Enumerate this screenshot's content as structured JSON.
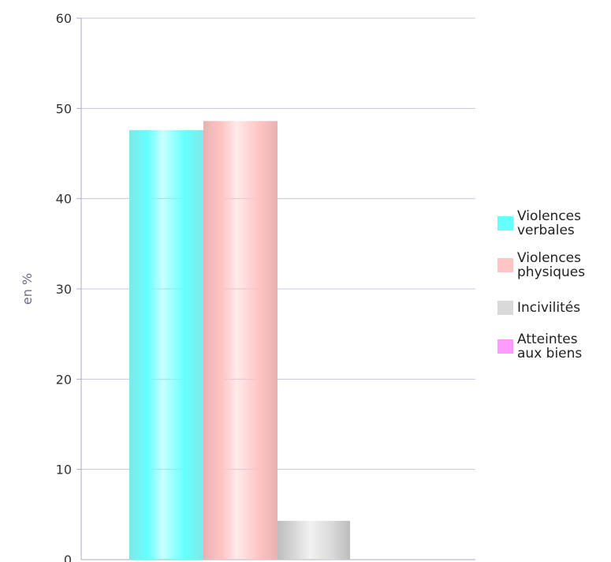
{
  "chart_data": {
    "type": "bar",
    "title": "",
    "xlabel": "",
    "ylabel": "en %",
    "ylim": [
      0,
      60
    ],
    "yticks": [
      0,
      10,
      20,
      30,
      40,
      50,
      60
    ],
    "grid": true,
    "legend_position": "right",
    "series": [
      {
        "name": "Violences verbales",
        "legend_lines": [
          "Violences",
          "verbales"
        ],
        "value": 47.6,
        "color": "#66ffff",
        "color_dark": "#7fe8e8"
      },
      {
        "name": "Violences physiques",
        "legend_lines": [
          "Violences",
          "physiques"
        ],
        "value": 48.6,
        "color": "#ffc4c4",
        "color_dark": "#e8b2b2"
      },
      {
        "name": "Incivilités",
        "legend_lines": [
          "Incivilités"
        ],
        "value": 4.3,
        "color": "#d9d9d9",
        "color_dark": "#bdbdbd"
      },
      {
        "name": "Atteintes aux biens",
        "legend_lines": [
          "Atteintes",
          "aux biens"
        ],
        "value": 0,
        "color": "#ff99ff",
        "color_dark": "#e080e0"
      }
    ]
  }
}
